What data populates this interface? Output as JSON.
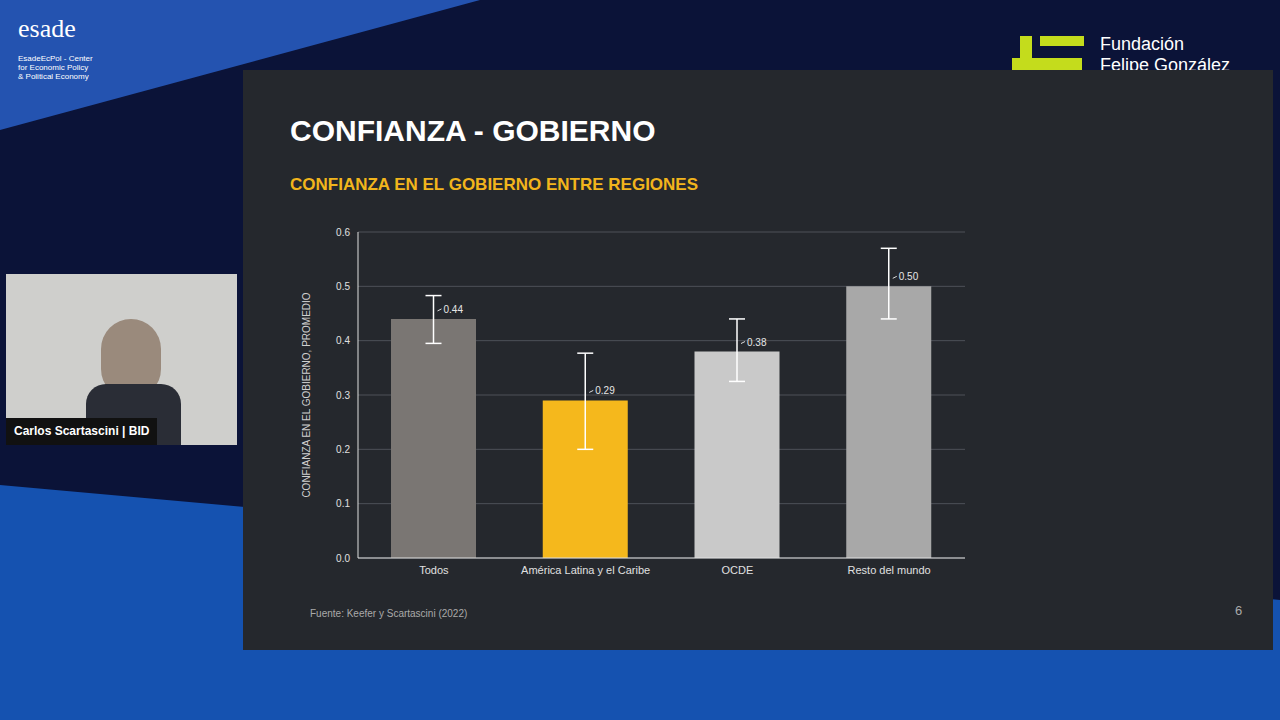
{
  "chart_data": {
    "type": "bar",
    "title": "CONFIANZA - GOBIERNO",
    "subtitle": "CONFIANZA EN EL GOBIERNO ENTRE REGIONES",
    "y_label": "CONFIANZA EN EL GOBIERNO, PROMEDIO",
    "categories": [
      "Todos",
      "América Latina y el Caribe",
      "OCDE",
      "Resto del mundo"
    ],
    "values": [
      0.44,
      0.29,
      0.38,
      0.5
    ],
    "value_labels": [
      "0.44",
      "0.29",
      "0.38",
      "0.50"
    ],
    "data_labels": true,
    "error_low": [
      0.395,
      0.2,
      0.325,
      0.44
    ],
    "error_high": [
      0.483,
      0.377,
      0.44,
      0.57
    ],
    "colors": [
      "#7a7673",
      "#f5b81c",
      "#c9c9c9",
      "#a8a8a8"
    ],
    "ylim": [
      0,
      0.6
    ],
    "yticks": [
      {
        "value": 0,
        "label": "0.0"
      },
      0.1,
      0.2,
      0.3,
      0.4,
      0.5,
      0.6
    ],
    "grid": true,
    "source": "Fuente: Keefer y Scartascini (2022)",
    "page": "6"
  },
  "screen": {
    "logo": "esade",
    "logo_caption": [
      "EsadeEcPol - Center",
      "for Economic Policy",
      "& Political Economy"
    ],
    "partner": [
      "Fundación",
      "Felipe González"
    ],
    "speaker": "Carlos Scartascini | BID"
  }
}
